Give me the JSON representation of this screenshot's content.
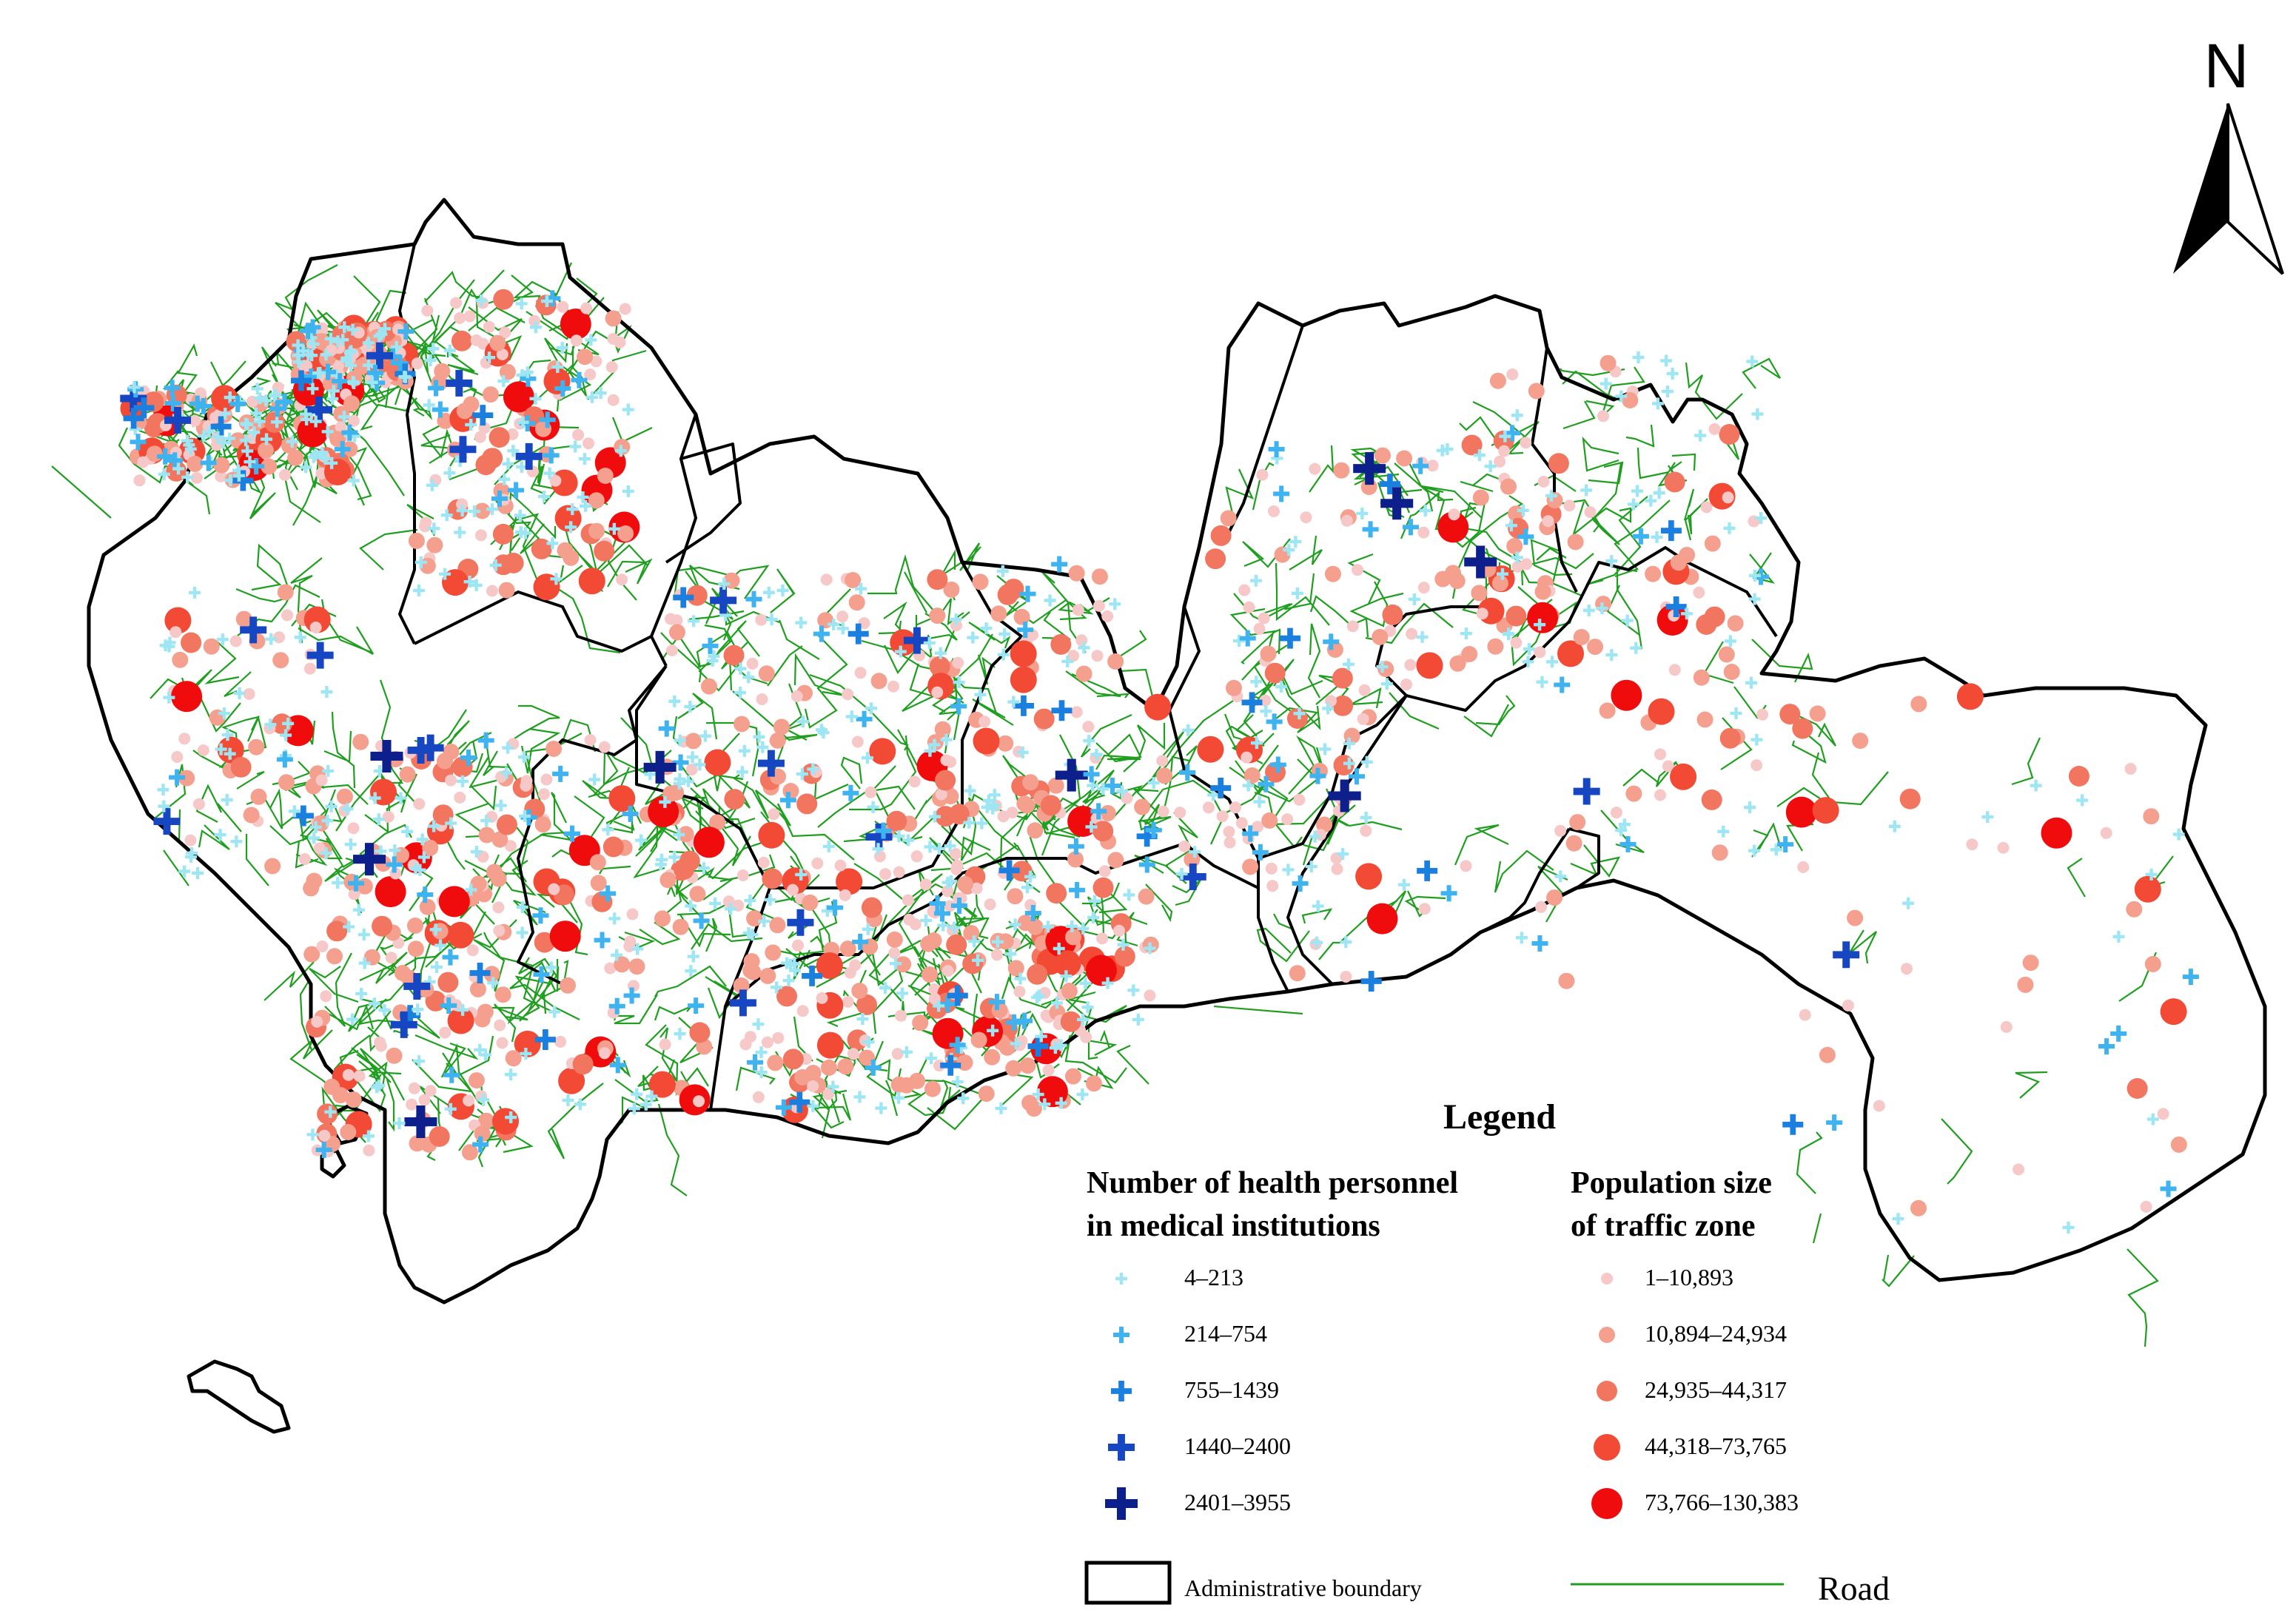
{
  "north_arrow": {
    "label": "N"
  },
  "legend": {
    "title": "Legend",
    "health_heading_line1": "Number of health personnel",
    "health_heading_line2": "in medical institutions",
    "population_heading_line1": "Population size",
    "population_heading_line2": "of traffic zone",
    "health_classes": [
      {
        "label": "4–213",
        "color": "#9fe6f4"
      },
      {
        "label": "214–754",
        "color": "#3fb3ef"
      },
      {
        "label": "755–1439",
        "color": "#1b7fe0"
      },
      {
        "label": "1440–2400",
        "color": "#1746c2"
      },
      {
        "label": "2401–3955",
        "color": "#0c1f8a"
      }
    ],
    "population_classes": [
      {
        "label": "1–10,893",
        "color": "#f7c8c8"
      },
      {
        "label": "10,894–24,934",
        "color": "#f5a08e"
      },
      {
        "label": "24,935–44,317",
        "color": "#f2765f"
      },
      {
        "label": "44,318–73,765",
        "color": "#f24a35"
      },
      {
        "label": "73,766–130,383",
        "color": "#f00c0c"
      }
    ],
    "boundary_label": "Administrative boundary",
    "road_label": "Road"
  },
  "colors": {
    "road": "#1f9e1f",
    "boundary": "#000000"
  },
  "seed": 20240
}
